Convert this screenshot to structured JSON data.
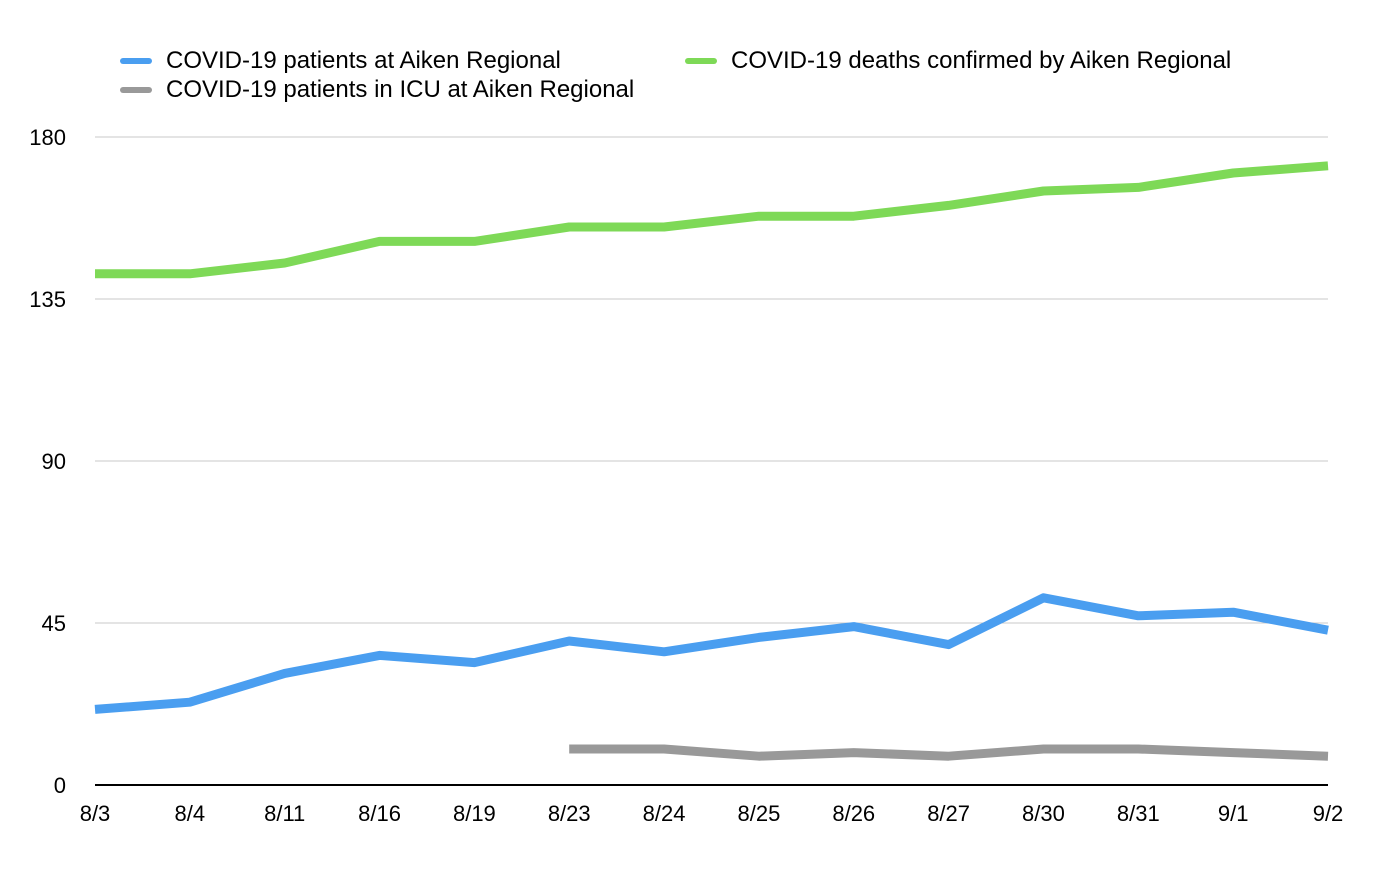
{
  "chart_data": {
    "type": "line",
    "title": "",
    "xlabel": "",
    "ylabel": "",
    "categories": [
      "8/3",
      "8/4",
      "8/11",
      "8/16",
      "8/19",
      "8/23",
      "8/24",
      "8/25",
      "8/26",
      "8/27",
      "8/30",
      "8/31",
      "9/1",
      "9/2"
    ],
    "ylim": [
      0,
      180
    ],
    "yticks": [
      "0",
      "45",
      "90",
      "135",
      "180"
    ],
    "grid": true,
    "legend_position": "top",
    "series": [
      {
        "name": "COVID-19 patients at Aiken Regional",
        "color": "#4a9ef0",
        "values": [
          21,
          23,
          31,
          36,
          34,
          40,
          37,
          41,
          44,
          39,
          52,
          47,
          48,
          43
        ]
      },
      {
        "name": "COVID-19 deaths confirmed by Aiken Regional",
        "color": "#7ed957",
        "values": [
          142,
          142,
          145,
          151,
          151,
          155,
          155,
          158,
          158,
          161,
          165,
          166,
          170,
          172
        ]
      },
      {
        "name": "COVID-19 patients in ICU at Aiken Regional",
        "color": "#999999",
        "values": [
          null,
          null,
          null,
          null,
          null,
          10,
          10,
          8,
          9,
          8,
          10,
          10,
          9,
          8
        ]
      }
    ]
  }
}
